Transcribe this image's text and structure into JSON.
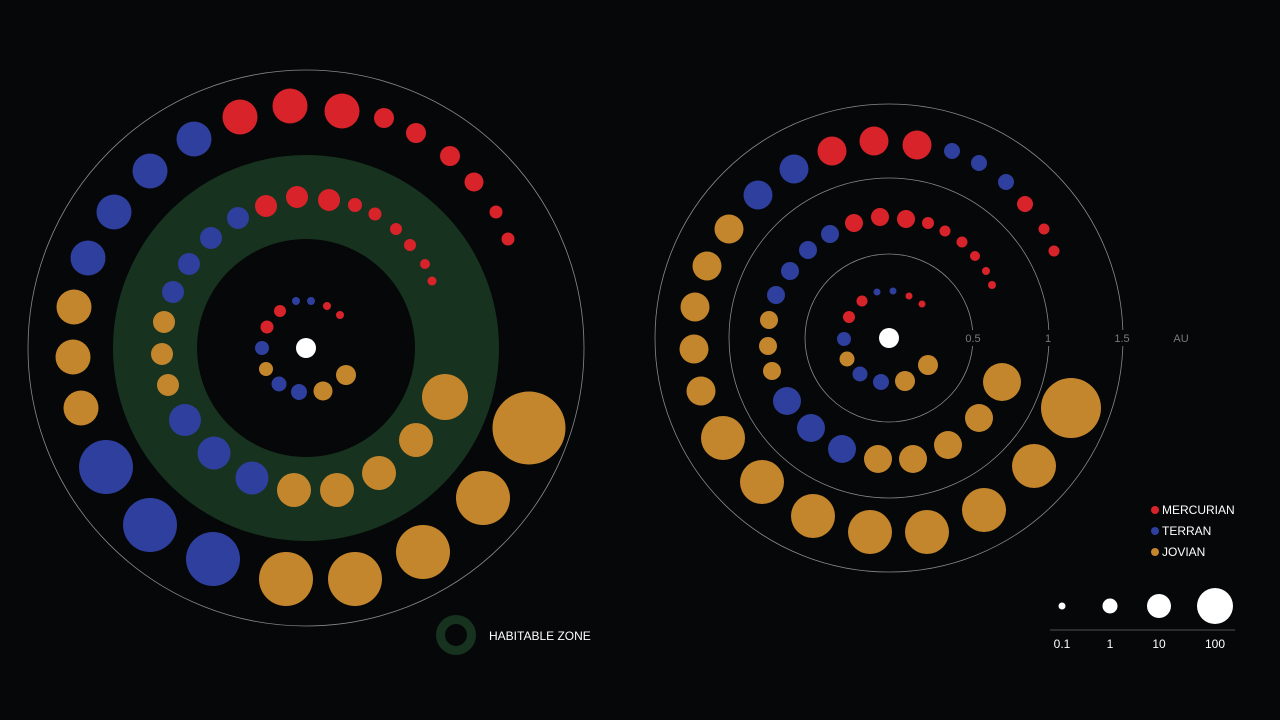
{
  "colors": {
    "background": "#060708",
    "mercurian": "#d8232a",
    "terran": "#2e3f9e",
    "jovian": "#c4862d",
    "star": "#ffffff",
    "habitable_zone": "#17331f",
    "ring": "#8a8a8a"
  },
  "chart_data": [
    {
      "type": "scatter",
      "title": "",
      "subtitle": "",
      "encoding": "polar spiral — each dot is a planet; dot area = planet mass; dot color = planet class",
      "series": [
        {
          "name": "MERCURIAN",
          "count": 21
        },
        {
          "name": "TERRAN",
          "count": 20
        },
        {
          "name": "JOVIAN",
          "count": 28
        }
      ],
      "habitable_zone_label": "HABITABLE ZONE"
    },
    {
      "type": "scatter",
      "title": "",
      "subtitle": "",
      "axis": {
        "ticks": [
          "0.5",
          "1",
          "1.5"
        ],
        "unit": "AU",
        "ticks_values": [
          0.5,
          1,
          1.5
        ]
      },
      "series": [
        {
          "name": "MERCURIAN",
          "count": 20
        },
        {
          "name": "TERRAN",
          "count": 20
        },
        {
          "name": "JOVIAN",
          "count": 28
        }
      ]
    }
  ],
  "legend": {
    "items": [
      {
        "label": "MERCURIAN",
        "color": "#d8232a"
      },
      {
        "label": "TERRAN",
        "color": "#2e3f9e"
      },
      {
        "label": "JOVIAN",
        "color": "#c4862d"
      }
    ],
    "size_legend": [
      {
        "label": "0.1",
        "value": 0.1
      },
      {
        "label": "1",
        "value": 1
      },
      {
        "label": "10",
        "value": 10
      },
      {
        "label": "100",
        "value": 100
      }
    ]
  }
}
